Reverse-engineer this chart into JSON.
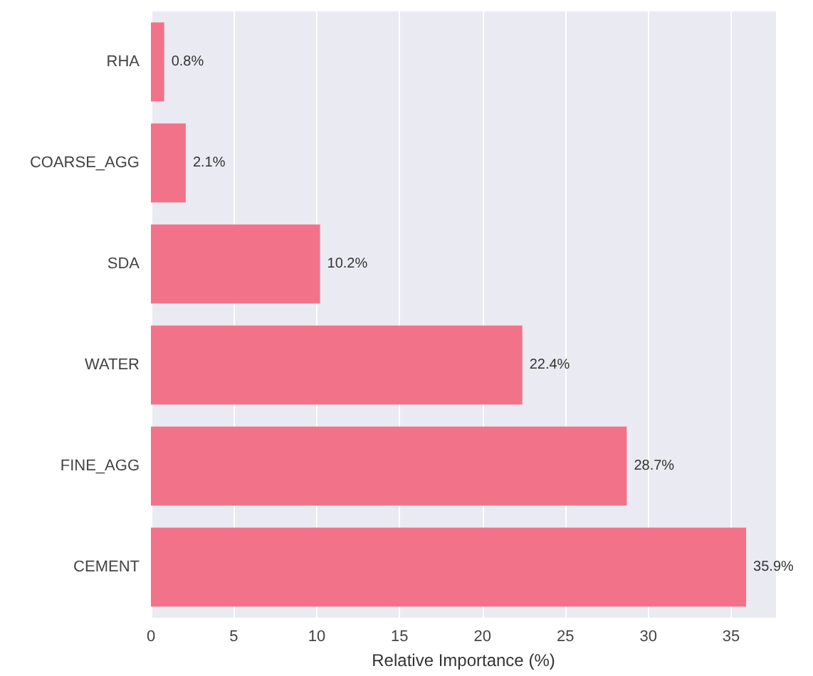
{
  "chart_data": {
    "type": "bar",
    "orientation": "horizontal",
    "xlabel": "Relative Importance (%)",
    "categories": [
      "RHA",
      "COARSE_AGG",
      "SDA",
      "WATER",
      "FINE_AGG",
      "CEMENT"
    ],
    "values": [
      0.8,
      2.1,
      10.2,
      22.4,
      28.7,
      35.9
    ],
    "value_labels": [
      "0.8%",
      "2.1%",
      "10.2%",
      "22.4%",
      "28.7%",
      "35.9%"
    ],
    "color": "#f2728a",
    "xlim": [
      0,
      37.7
    ],
    "xticks": [
      0,
      5,
      10,
      15,
      20,
      25,
      30,
      35
    ],
    "grid": "x"
  }
}
